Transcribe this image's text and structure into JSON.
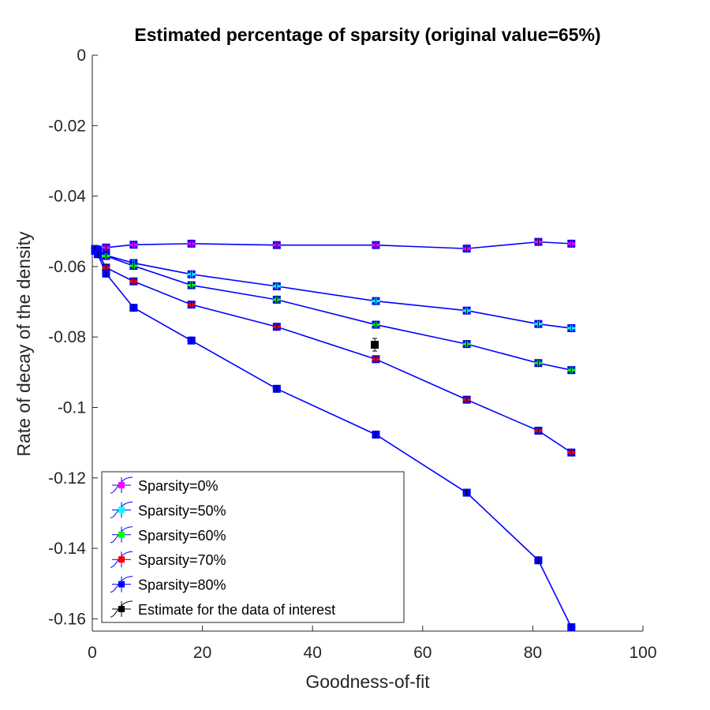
{
  "chart_data": {
    "type": "line",
    "title": "Estimated percentage of sparsity (original value=65%)",
    "xlabel": "Goodness-of-fit",
    "ylabel": "Rate of decay of the density",
    "xlim": [
      0,
      100
    ],
    "ylim": [
      -0.1635,
      0
    ],
    "xticks": [
      "0",
      "20",
      "40",
      "60",
      "80",
      "100"
    ],
    "yticks": [
      "0",
      "-0.02",
      "-0.04",
      "-0.06",
      "-0.08",
      "-0.1",
      "-0.12",
      "-0.14",
      "-0.16"
    ],
    "grid": false,
    "legend_position": "bottom-left",
    "line_color": "#0000ff",
    "series": [
      {
        "name": "Sparsity=0%",
        "marker_color": "#ff00ff",
        "x": [
          0.5,
          1.0,
          2.5,
          7.5,
          18.0,
          33.5,
          51.5,
          68.0,
          81.0,
          87.0
        ],
        "y": [
          -0.0553,
          -0.0552,
          -0.0546,
          -0.0538,
          -0.0535,
          -0.0539,
          -0.0539,
          -0.0549,
          -0.053,
          -0.0535
        ]
      },
      {
        "name": "Sparsity=50%",
        "marker_color": "#00ffff",
        "x": [
          0.5,
          1.0,
          2.5,
          7.5,
          18.0,
          33.5,
          51.5,
          68.0,
          81.0,
          87.0
        ],
        "y": [
          -0.055,
          -0.0555,
          -0.0568,
          -0.059,
          -0.0622,
          -0.0656,
          -0.0698,
          -0.0725,
          -0.0763,
          -0.0775
        ]
      },
      {
        "name": "Sparsity=60%",
        "marker_color": "#00ff00",
        "x": [
          0.5,
          1.0,
          2.5,
          7.5,
          18.0,
          33.5,
          51.5,
          68.0,
          81.0,
          87.0
        ],
        "y": [
          -0.0552,
          -0.0557,
          -0.057,
          -0.0598,
          -0.0653,
          -0.0694,
          -0.0765,
          -0.082,
          -0.0874,
          -0.0894
        ]
      },
      {
        "name": "Sparsity=70%",
        "marker_color": "#ff0000",
        "x": [
          0.5,
          1.0,
          2.5,
          7.5,
          18.0,
          33.5,
          51.5,
          68.0,
          81.0,
          87.0
        ],
        "y": [
          -0.0555,
          -0.056,
          -0.0603,
          -0.0642,
          -0.0708,
          -0.0771,
          -0.0863,
          -0.0978,
          -0.1066,
          -0.1128
        ]
      },
      {
        "name": "Sparsity=80%",
        "marker_color": "#0000ff",
        "x": [
          0.5,
          1.0,
          2.5,
          7.5,
          18.0,
          33.5,
          51.5,
          68.0,
          81.0,
          87.0
        ],
        "y": [
          -0.0555,
          -0.0565,
          -0.062,
          -0.0717,
          -0.081,
          -0.0947,
          -0.1077,
          -0.1242,
          -0.1434,
          -0.1624
        ]
      }
    ],
    "estimate": {
      "name": "Estimate for the data of interest",
      "marker_color": "#000000",
      "x": 51.3,
      "y": -0.0822,
      "y_err": 0.0018
    }
  }
}
